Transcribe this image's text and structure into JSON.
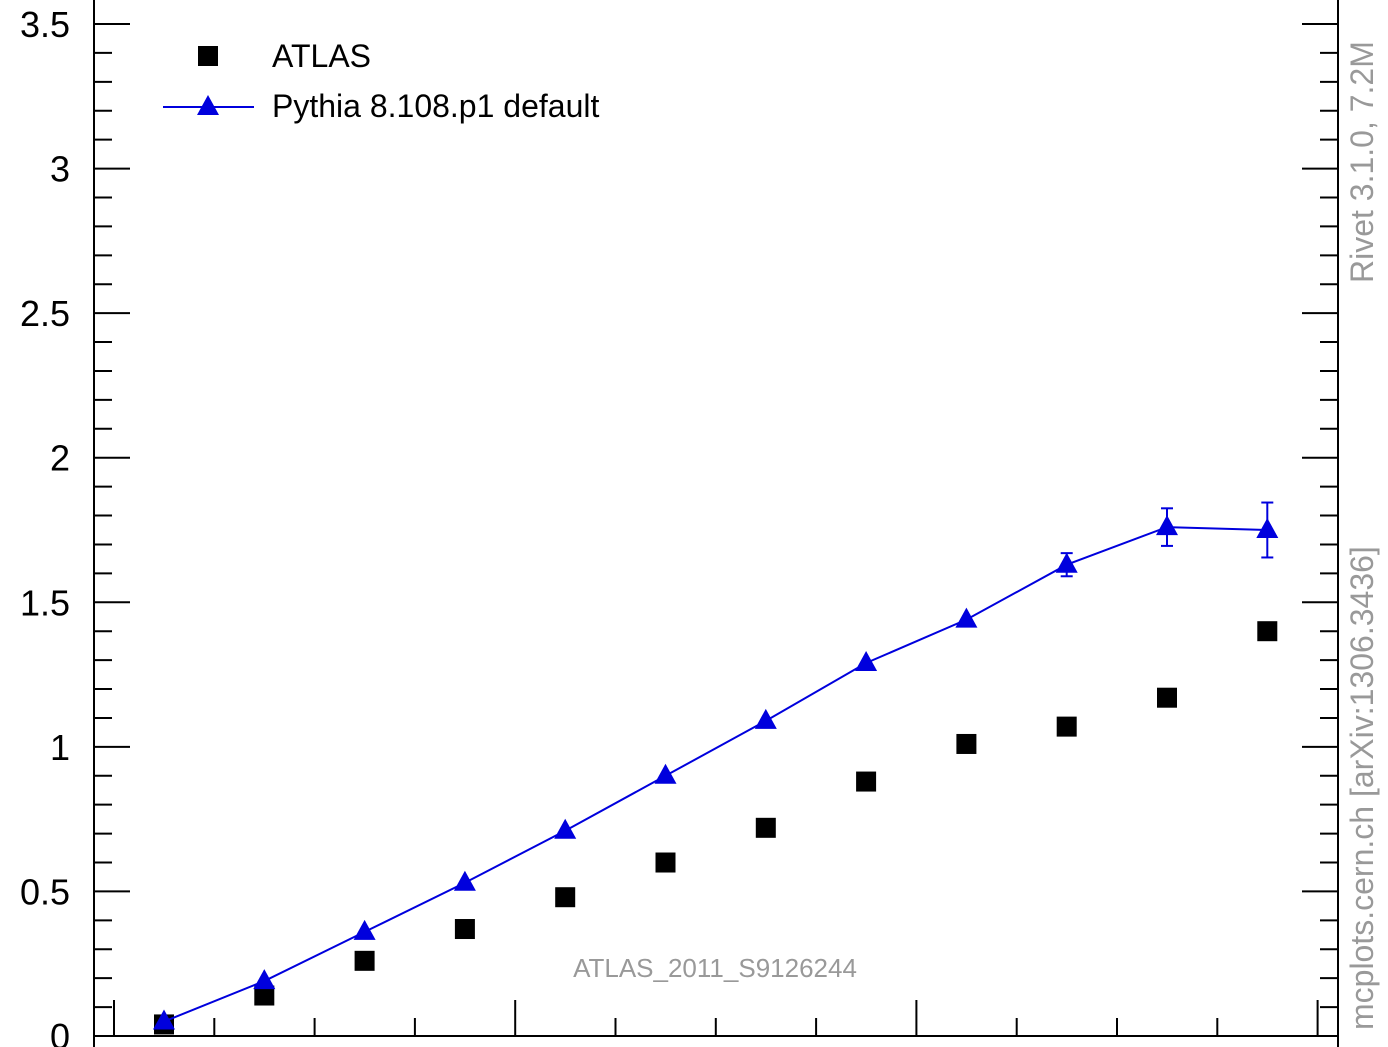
{
  "chart_data": {
    "type": "scatter",
    "xlim": [
      0,
      12.2
    ],
    "ylim": [
      0,
      3.6
    ],
    "y_ticks": [
      0,
      0.5,
      1,
      1.5,
      2,
      2.5,
      3,
      3.5
    ],
    "y_tick_labels": [
      "0",
      "0.5",
      "1",
      "1.5",
      "2",
      "2.5",
      "3",
      "3.5"
    ],
    "legend_position": "top-left",
    "annotation": "ATLAS_2011_S9126244",
    "series": [
      {
        "name": "ATLAS",
        "style": "markers",
        "marker": "square",
        "color": "#000000",
        "x": [
          0.5,
          1.5,
          2.5,
          3.5,
          4.5,
          5.5,
          6.5,
          7.5,
          8.5,
          9.5,
          10.5,
          11.5
        ],
        "y": [
          0.04,
          0.14,
          0.26,
          0.37,
          0.48,
          0.6,
          0.72,
          0.88,
          1.01,
          1.07,
          1.17,
          1.4
        ]
      },
      {
        "name": "Pythia 8.108.p1 default",
        "style": "line+markers",
        "marker": "triangle",
        "color": "#0000dd",
        "x": [
          0.5,
          1.5,
          2.5,
          3.5,
          4.5,
          5.5,
          6.5,
          7.5,
          8.5,
          9.5,
          10.5,
          11.5
        ],
        "y": [
          0.05,
          0.19,
          0.36,
          0.53,
          0.71,
          0.9,
          1.09,
          1.29,
          1.44,
          1.63,
          1.76,
          1.75
        ],
        "err": [
          0,
          0,
          0,
          0,
          0,
          0,
          0,
          0,
          0,
          0.04,
          0.065,
          0.095
        ]
      }
    ]
  },
  "side_text": {
    "right_upper": "Rivet 3.1.0,  7.2M",
    "right_lower": "mcplots.cern.ch [arXiv:1306.3436]"
  }
}
